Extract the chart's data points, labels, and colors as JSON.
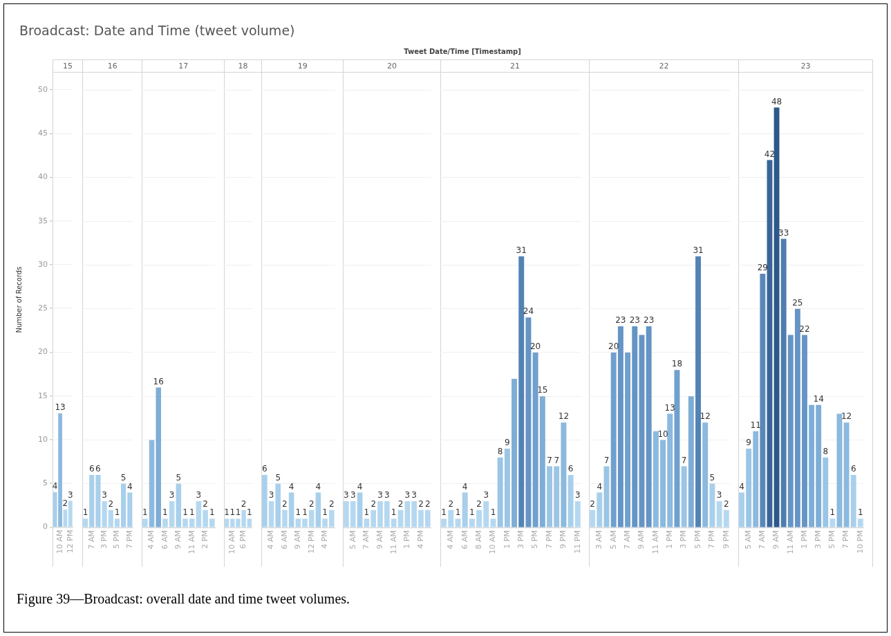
{
  "chart_data": [
    {
      "type": "other",
      "title": "Broadcast: Date and Time (tweet volume)",
      "subtitle": "Tweet Date/Time [Timestamp]",
      "annotations": [
        "Figure 39—Broadcast: overall date and time tweet volumes."
      ]
    },
    {
      "type": "bar",
      "title": "15",
      "ylabel": "Number of Records",
      "ylim": [
        0,
        52
      ],
      "yticks": [
        0,
        5,
        10,
        15,
        20,
        25,
        30,
        35,
        40,
        45,
        50
      ],
      "grid": "y",
      "categories": [
        null,
        "10 AM",
        null,
        "12 PM"
      ],
      "values": [
        4,
        13,
        2,
        3
      ],
      "value_labels": [
        "4",
        "13",
        "2",
        "3"
      ],
      "colors": [
        "#a8cfeb",
        "#8cb9de",
        "#b5d8f0",
        "#b5d8f0"
      ]
    },
    {
      "type": "bar",
      "title": "16",
      "ylim": [
        0,
        52
      ],
      "yticks": [
        0,
        5,
        10,
        15,
        20,
        25,
        30,
        35,
        40,
        45,
        50
      ],
      "grid": "y",
      "tick_labels": "x",
      "categories": [
        null,
        "7 AM",
        null,
        "3 PM",
        null,
        "5 PM",
        null,
        "7 PM"
      ],
      "values": [
        1,
        6,
        6,
        3,
        2,
        1,
        5,
        4
      ],
      "value_labels": [
        "1",
        "6",
        "6",
        "3",
        "2",
        "1",
        "5",
        "4"
      ],
      "colors": [
        "#b5d8f0",
        "#a8cfeb",
        "#a8cfeb",
        "#b5d8f0",
        "#b5d8f0",
        "#b5d8f0",
        "#a8cfeb",
        "#a8cfeb"
      ]
    },
    {
      "type": "bar",
      "title": "17",
      "ylim": [
        0,
        52
      ],
      "yticks": [
        0,
        5,
        10,
        15,
        20,
        25,
        30,
        35,
        40,
        45,
        50
      ],
      "grid": "y",
      "tick_labels": "x",
      "categories": [
        null,
        "4 AM",
        null,
        "6 AM",
        null,
        "9 AM",
        null,
        "11 AM",
        null,
        "2 PM",
        null
      ],
      "values": [
        1,
        10,
        16,
        1,
        3,
        5,
        1,
        1,
        3,
        2,
        1
      ],
      "value_labels": [
        "1",
        null,
        "16",
        "1",
        "3",
        "5",
        "1",
        "1",
        "3",
        "2",
        "1"
      ],
      "colors": [
        "#b5d8f0",
        "#8cb9de",
        "#7eadd6",
        "#b5d8f0",
        "#b5d8f0",
        "#a8cfeb",
        "#b5d8f0",
        "#b5d8f0",
        "#b5d8f0",
        "#b5d8f0",
        "#b5d8f0"
      ]
    },
    {
      "type": "bar",
      "title": "18",
      "ylim": [
        0,
        52
      ],
      "yticks": [
        0,
        5,
        10,
        15,
        20,
        25,
        30,
        35,
        40,
        45,
        50
      ],
      "grid": "y",
      "tick_labels": "x",
      "categories": [
        null,
        "10 AM",
        null,
        "6 PM",
        null
      ],
      "values": [
        1,
        1,
        1,
        2,
        1
      ],
      "value_labels": [
        "1",
        "1",
        "1",
        "2",
        "1"
      ],
      "colors": [
        "#b5d8f0",
        "#b5d8f0",
        "#b5d8f0",
        "#b5d8f0",
        "#b5d8f0"
      ]
    },
    {
      "type": "bar",
      "title": "19",
      "ylim": [
        0,
        52
      ],
      "yticks": [
        0,
        5,
        10,
        15,
        20,
        25,
        30,
        35,
        40,
        45,
        50
      ],
      "grid": "y",
      "tick_labels": "x",
      "categories": [
        null,
        "4 AM",
        null,
        "6 AM",
        null,
        "9 AM",
        null,
        "12 PM",
        null,
        "4 PM",
        null
      ],
      "values": [
        6,
        3,
        5,
        2,
        4,
        1,
        1,
        2,
        4,
        1,
        2
      ],
      "value_labels": [
        "6",
        "3",
        "5",
        "2",
        "4",
        "1",
        "1",
        "2",
        "4",
        "1",
        "2"
      ],
      "colors": [
        "#a8cfeb",
        "#b5d8f0",
        "#a8cfeb",
        "#b5d8f0",
        "#a8cfeb",
        "#b5d8f0",
        "#b5d8f0",
        "#b5d8f0",
        "#a8cfeb",
        "#b5d8f0",
        "#b5d8f0"
      ]
    },
    {
      "type": "bar",
      "title": "20",
      "ylim": [
        0,
        52
      ],
      "yticks": [
        0,
        5,
        10,
        15,
        20,
        25,
        30,
        35,
        40,
        45,
        50
      ],
      "grid": "y",
      "tick_labels": "x",
      "categories": [
        null,
        "5 AM",
        null,
        "7 AM",
        null,
        "9 AM",
        null,
        "11 AM",
        null,
        "1 PM",
        null,
        "4 PM",
        null
      ],
      "values": [
        3,
        3,
        4,
        1,
        2,
        3,
        3,
        1,
        2,
        3,
        3,
        2,
        2
      ],
      "value_labels": [
        "3",
        "3",
        "4",
        "1",
        "2",
        "3",
        "3",
        "1",
        "2",
        "3",
        "3",
        "2",
        "2"
      ],
      "colors": [
        "#b5d8f0",
        "#b5d8f0",
        "#a8cfeb",
        "#b5d8f0",
        "#b5d8f0",
        "#b5d8f0",
        "#b5d8f0",
        "#b5d8f0",
        "#b5d8f0",
        "#b5d8f0",
        "#b5d8f0",
        "#b5d8f0",
        "#b5d8f0"
      ]
    },
    {
      "type": "bar",
      "title": "21",
      "ylim": [
        0,
        52
      ],
      "yticks": [
        0,
        5,
        10,
        15,
        20,
        25,
        30,
        35,
        40,
        45,
        50
      ],
      "grid": "y",
      "tick_labels": "x",
      "categories": [
        null,
        "4 AM",
        null,
        "6 AM",
        null,
        "8 AM",
        null,
        "10 AM",
        null,
        "1 PM",
        null,
        "3 PM",
        null,
        "5 PM",
        null,
        "7 PM",
        null,
        "9 PM",
        null,
        "11 PM"
      ],
      "values": [
        1,
        2,
        1,
        4,
        1,
        2,
        3,
        1,
        8,
        9,
        17,
        31,
        24,
        20,
        15,
        7,
        7,
        12,
        6,
        3
      ],
      "value_labels": [
        "1",
        "2",
        "1",
        "4",
        "1",
        "2",
        "3",
        "1",
        "8",
        "9",
        null,
        "31",
        "24",
        "20",
        "15",
        "7",
        "7",
        "12",
        "6",
        "3"
      ],
      "colors": [
        "#b5d8f0",
        "#b5d8f0",
        "#b5d8f0",
        "#a8cfeb",
        "#b5d8f0",
        "#b5d8f0",
        "#b5d8f0",
        "#b5d8f0",
        "#9bc5e5",
        "#9bc5e5",
        "#7eadd6",
        "#5383b5",
        "#6594c5",
        "#70a0cd",
        "#7eadd6",
        "#9bc5e5",
        "#9bc5e5",
        "#8cb9de",
        "#a8cfeb",
        "#b5d8f0"
      ]
    },
    {
      "type": "bar",
      "title": "22",
      "ylim": [
        0,
        52
      ],
      "yticks": [
        0,
        5,
        10,
        15,
        20,
        25,
        30,
        35,
        40,
        45,
        50
      ],
      "grid": "y",
      "tick_labels": "x",
      "categories": [
        null,
        "3 AM",
        null,
        "5 AM",
        null,
        "7 AM",
        null,
        "9 AM",
        null,
        "11 AM",
        null,
        "1 PM",
        null,
        "3 PM",
        null,
        "5 PM",
        null,
        "7 PM",
        null,
        "9 PM"
      ],
      "values": [
        2,
        4,
        7,
        20,
        23,
        20,
        23,
        22,
        23,
        11,
        10,
        13,
        18,
        7,
        15,
        31,
        12,
        5,
        3,
        2
      ],
      "value_labels": [
        "2",
        "4",
        "7",
        "20",
        "23",
        null,
        "23",
        null,
        "23",
        null,
        "10",
        "13",
        "18",
        "7",
        null,
        "31",
        "12",
        "5",
        "3",
        "2"
      ],
      "colors": [
        "#b5d8f0",
        "#a8cfeb",
        "#9bc5e5",
        "#70a0cd",
        "#6594c5",
        "#70a0cd",
        "#6594c5",
        "#6594c5",
        "#6594c5",
        "#8cb9de",
        "#8cb9de",
        "#8cb9de",
        "#70a0cd",
        "#9bc5e5",
        "#7eadd6",
        "#5383b5",
        "#8cb9de",
        "#a8cfeb",
        "#b5d8f0",
        "#b5d8f0"
      ]
    },
    {
      "type": "bar",
      "title": "23",
      "ylim": [
        0,
        52
      ],
      "yticks": [
        0,
        5,
        10,
        15,
        20,
        25,
        30,
        35,
        40,
        45,
        50
      ],
      "grid": "y",
      "tick_labels": "x",
      "categories": [
        null,
        "5 AM",
        null,
        "7 AM",
        null,
        "9 AM",
        null,
        "11 AM",
        null,
        "1 PM",
        null,
        "3 PM",
        null,
        "5 PM",
        null,
        "7 PM",
        null,
        "10 PM"
      ],
      "values": [
        4,
        9,
        11,
        29,
        42,
        48,
        33,
        22,
        25,
        22,
        14,
        14,
        8,
        1,
        13,
        12,
        6,
        1
      ],
      "value_labels": [
        "4",
        "9",
        "11",
        "29",
        "42",
        "48",
        "33",
        null,
        "25",
        "22",
        null,
        "14",
        "8",
        "1",
        null,
        "12",
        "6",
        "1"
      ],
      "colors": [
        "#a8cfeb",
        "#9bc5e5",
        "#8cb9de",
        "#5a87ba",
        "#3a6598",
        "#2e5889",
        "#4f7db0",
        "#6594c5",
        "#6594c5",
        "#6594c5",
        "#7eadd6",
        "#7eadd6",
        "#9bc5e5",
        "#b5d8f0",
        "#8cb9de",
        "#8cb9de",
        "#a8cfeb",
        "#b5d8f0"
      ]
    }
  ]
}
